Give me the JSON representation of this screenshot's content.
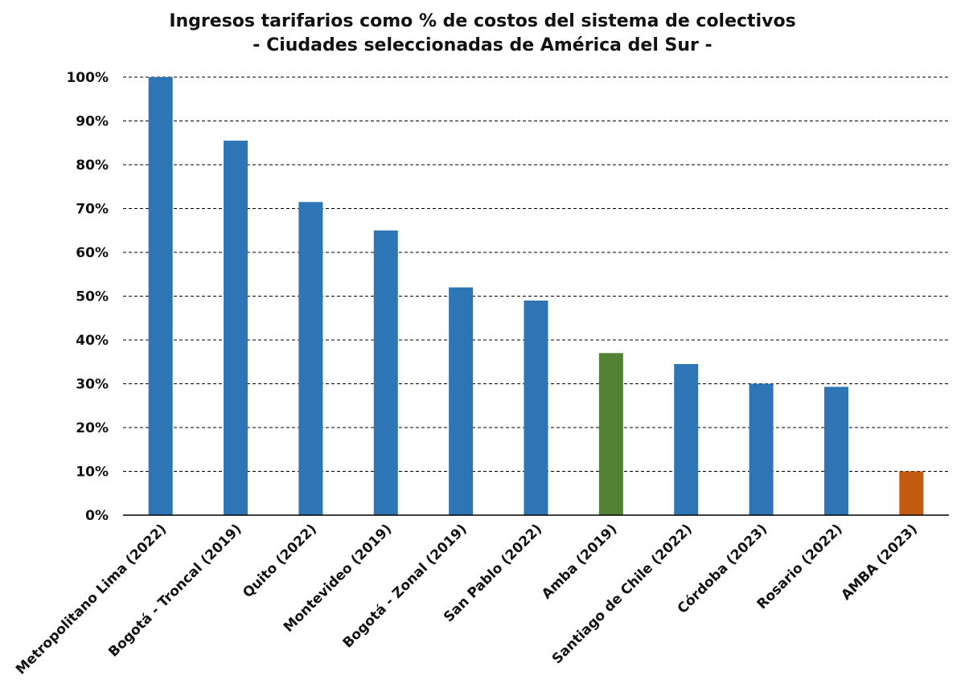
{
  "chart_data": {
    "type": "bar",
    "title": "Ingresos tarifarios como % de costos del sistema de colectivos",
    "subtitle": "- Ciudades seleccionadas de América del Sur -",
    "xlabel": "",
    "ylabel": "",
    "ylim": [
      0,
      100
    ],
    "yticks": [
      "0%",
      "10%",
      "20%",
      "30%",
      "40%",
      "50%",
      "60%",
      "70%",
      "80%",
      "90%",
      "100%"
    ],
    "grid": true,
    "legend": "none",
    "categories": [
      "Metropolitano Lima (2022)",
      "Bogotá - Troncal (2019)",
      "Quito (2022)",
      "Montevideo (2019)",
      "Bogotá - Zonal (2019)",
      "San Pablo (2022)",
      "Amba (2019)",
      "Santiago de Chile (2022)",
      "Córdoba (2023)",
      "Rosario (2022)",
      "AMBA (2023)"
    ],
    "values": [
      100,
      85.5,
      71.5,
      65,
      52,
      49,
      37,
      34.5,
      30,
      29.3,
      10
    ],
    "colors": [
      "#2E75B6",
      "#2E75B6",
      "#2E75B6",
      "#2E75B6",
      "#2E75B6",
      "#2E75B6",
      "#548235",
      "#2E75B6",
      "#2E75B6",
      "#2E75B6",
      "#C55A11"
    ]
  }
}
